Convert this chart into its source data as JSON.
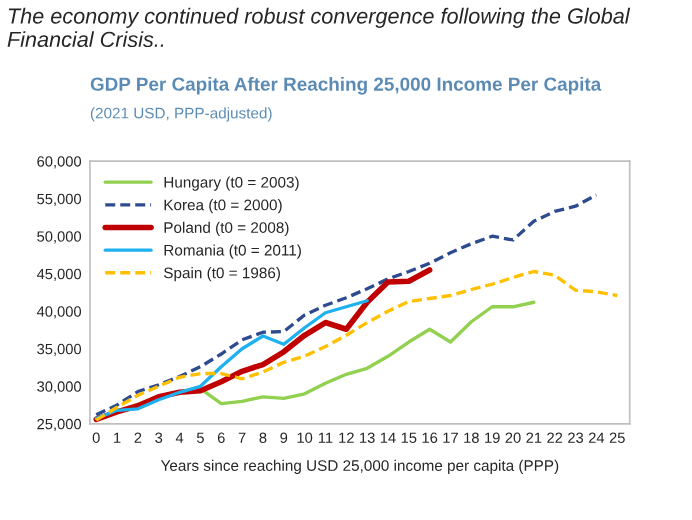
{
  "chart_data": {
    "type": "line",
    "title": "GDP Per Capita After Reaching 25,000 Income Per Capita",
    "subtitle": "(2021 USD, PPP-adjusted)",
    "annotations": [
      "The economy continued robust convergence following the Global Financial Crisis.."
    ],
    "xlabel": "Years since reaching USD 25,000 income per capita (PPP)",
    "xlim": [
      -0.3,
      25.6
    ],
    "xticks": [
      0,
      1,
      2,
      3,
      4,
      5,
      6,
      7,
      8,
      9,
      10,
      11,
      12,
      13,
      14,
      15,
      16,
      17,
      18,
      19,
      20,
      21,
      22,
      23,
      24,
      25
    ],
    "ylim": [
      25000,
      60000
    ],
    "yticks": [
      {
        "value": 25000,
        "label": "25,000"
      },
      {
        "value": 30000,
        "label": "30,000"
      },
      {
        "value": 35000,
        "label": "35,000"
      },
      {
        "value": 40000,
        "label": "40,000"
      },
      {
        "value": 45000,
        "label": "45,000"
      },
      {
        "value": 50000,
        "label": "50,000"
      },
      {
        "value": 55000,
        "label": "55,000"
      },
      {
        "value": 60000,
        "label": "60,000"
      }
    ],
    "grid": false,
    "legend": "top left",
    "marker": "none",
    "series": [
      {
        "name": "Hungary (t0 = 2003)",
        "color": "#92d050",
        "line_style": "solid",
        "x": [
          0,
          1,
          2,
          3,
          4,
          5,
          6,
          7,
          8,
          9,
          10,
          11,
          12,
          13,
          14,
          15,
          16,
          17,
          18,
          19,
          20,
          21
        ],
        "values": [
          25800,
          26600,
          27600,
          28600,
          29200,
          29700,
          27700,
          28000,
          28600,
          28400,
          29000,
          30400,
          31600,
          32400,
          34000,
          35900,
          37600,
          35900,
          38600,
          40600,
          40600,
          41200
        ]
      },
      {
        "name": "Korea (t0 = 2000)",
        "color": "#2f4b8f",
        "line_style": "dashed",
        "x": [
          0,
          1,
          2,
          3,
          4,
          5,
          6,
          7,
          8,
          9,
          10,
          11,
          12,
          13,
          14,
          15,
          16,
          17,
          18,
          19,
          20,
          21,
          22,
          23,
          24
        ],
        "values": [
          26200,
          27500,
          29300,
          30200,
          31300,
          32600,
          34300,
          36200,
          37200,
          37300,
          39500,
          40800,
          41800,
          43000,
          44300,
          45300,
          46400,
          47800,
          49000,
          50000,
          49500,
          52000,
          53300,
          54000,
          55500
        ]
      },
      {
        "name": "Poland (t0 = 2008)",
        "color": "#c00000",
        "line_style": "solid",
        "x": [
          0,
          1,
          2,
          3,
          4,
          5,
          6,
          7,
          8,
          9,
          10,
          11,
          12,
          13,
          14,
          15,
          16
        ],
        "values": [
          25600,
          26600,
          27400,
          28600,
          29200,
          29400,
          30600,
          32000,
          32900,
          34600,
          36800,
          38500,
          37600,
          41200,
          43900,
          44000,
          45500
        ]
      },
      {
        "name": "Romania (t0 = 2011)",
        "color": "#1fb0f0",
        "line_style": "solid",
        "x": [
          0,
          1,
          2,
          3,
          4,
          5,
          6,
          7,
          8,
          9,
          10,
          11,
          12,
          13
        ],
        "values": [
          25700,
          26800,
          27000,
          28200,
          29200,
          30000,
          32600,
          35000,
          36700,
          35600,
          37800,
          39800,
          40600,
          41400
        ]
      },
      {
        "name": "Spain (t0 = 1986)",
        "color": "#ffc000",
        "line_style": "dashed",
        "x": [
          0,
          1,
          2,
          3,
          4,
          5,
          6,
          7,
          8,
          9,
          10,
          11,
          12,
          13,
          14,
          15,
          16,
          17,
          18,
          19,
          20,
          21,
          22,
          23,
          24,
          25
        ],
        "values": [
          25500,
          27200,
          28800,
          30000,
          31200,
          31700,
          31700,
          31000,
          31900,
          33200,
          34000,
          35300,
          36800,
          38500,
          40000,
          41300,
          41700,
          42100,
          42900,
          43600,
          44500,
          45300,
          44800,
          42800,
          42600,
          42100
        ]
      }
    ]
  }
}
